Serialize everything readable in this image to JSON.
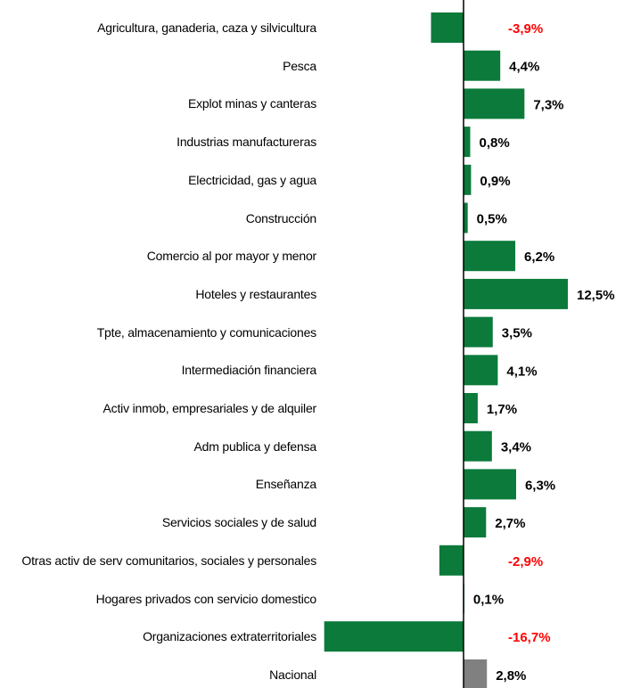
{
  "chart_data": {
    "type": "hbar",
    "categories": [
      "Agricultura, ganaderia, caza y silvicultura",
      "Pesca",
      "Explot minas y canteras",
      "Industrias manufactureras",
      "Electricidad, gas y agua",
      "Construcción",
      "Comercio al por mayor y menor",
      "Hoteles y restaurantes",
      "Tpte, almacenamiento y comunicaciones",
      "Intermediación financiera",
      "Activ inmob, empresariales y de alquiler",
      "Adm publica y defensa",
      "Enseñanza",
      "Servicios sociales y de salud",
      "Otras activ de serv comunitarios, sociales y personales",
      "Hogares privados con servicio domestico",
      "Organizaciones extraterritoriales",
      "Nacional"
    ],
    "values": [
      -3.9,
      4.4,
      7.3,
      0.8,
      0.9,
      0.5,
      6.2,
      12.5,
      3.5,
      4.1,
      1.7,
      3.4,
      6.3,
      2.7,
      -2.9,
      0.1,
      -16.7,
      2.8
    ],
    "value_labels": [
      "-3,9%",
      "4,4%",
      "7,3%",
      "0,8%",
      "0,9%",
      "0,5%",
      "6,2%",
      "12,5%",
      "3,5%",
      "4,1%",
      "1,7%",
      "3,4%",
      "6,3%",
      "2,7%",
      "-2,9%",
      "0,1%",
      "-16,7%",
      "2,8%"
    ],
    "colors": [
      "#0b7a3b",
      "#0b7a3b",
      "#0b7a3b",
      "#0b7a3b",
      "#0b7a3b",
      "#0b7a3b",
      "#0b7a3b",
      "#0b7a3b",
      "#0b7a3b",
      "#0b7a3b",
      "#0b7a3b",
      "#0b7a3b",
      "#0b7a3b",
      "#0b7a3b",
      "#0b7a3b",
      "#0b7a3b",
      "#0b7a3b",
      "#808080"
    ],
    "negative_label_color": "#ff0000"
  }
}
